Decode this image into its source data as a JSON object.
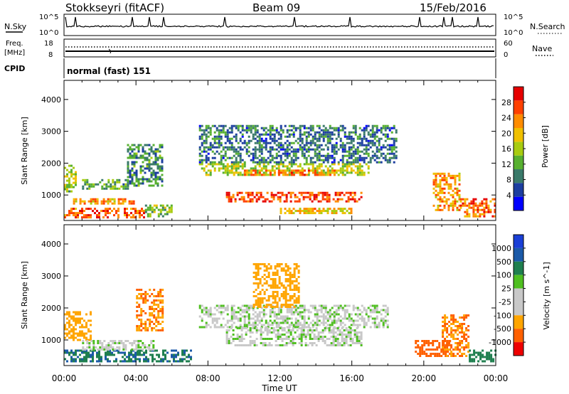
{
  "header": {
    "station": "Stokkseyri (fitACF)",
    "beam": "Beam 09",
    "date": "15/Feb/2016"
  },
  "noise_panel": {
    "left_label": "N.Sky",
    "right_label": "N.Search",
    "left_ticks": [
      "10^5",
      "10^0"
    ],
    "right_ticks": [
      "10^5",
      "10^0"
    ]
  },
  "freq_panel": {
    "left_label_1": "Freq.",
    "left_label_2": "[MHz]",
    "right_label": "Nave",
    "left_ticks": [
      "18",
      "8"
    ],
    "right_ticks": [
      "60",
      "0"
    ]
  },
  "cpid_panel": {
    "label": "CPID",
    "value": "normal (fast) 151"
  },
  "colors": {
    "power_scale": [
      "#0000ff",
      "#1c3ea0",
      "#3a7a6a",
      "#57b030",
      "#a8cc10",
      "#f0c000",
      "#ff8c00",
      "#ff4000",
      "#e60000"
    ],
    "velocity_scale": [
      "#1a3fd6",
      "#1b5aa8",
      "#1f7f4f",
      "#4fbf20",
      "#c8c8c8",
      "#c8c8c8",
      "#ffa500",
      "#ff6000",
      "#ee0000"
    ]
  },
  "chart_data": [
    {
      "type": "heatmap",
      "title": "Power",
      "xlabel": "Time UT",
      "ylabel": "Slant Range [km]",
      "x_ticks": [
        "00:00",
        "04:00",
        "08:00",
        "12:00",
        "16:00",
        "20:00",
        "00:00"
      ],
      "y_ticks": [
        "1000",
        "2000",
        "3000",
        "4000"
      ],
      "ylim": [
        200,
        4600
      ],
      "colorbar": {
        "label": "Power [dB]",
        "ticks": [
          "4",
          "8",
          "12",
          "16",
          "20",
          "24",
          "28"
        ],
        "range": [
          0,
          32
        ]
      },
      "echo_regions": [
        {
          "t_start": 0.0,
          "t_end": 0.6,
          "r_min": 1100,
          "r_max": 1950,
          "value": 15
        },
        {
          "t_start": 0.0,
          "t_end": 4.5,
          "r_min": 300,
          "r_max": 600,
          "value": 26
        },
        {
          "t_start": 0.5,
          "t_end": 4.0,
          "r_min": 700,
          "r_max": 900,
          "value": 22
        },
        {
          "t_start": 1.0,
          "t_end": 3.5,
          "r_min": 1200,
          "r_max": 1500,
          "value": 12
        },
        {
          "t_start": 3.5,
          "t_end": 5.5,
          "r_min": 1300,
          "r_max": 2600,
          "value": 10
        },
        {
          "t_start": 4.5,
          "t_end": 6.0,
          "r_min": 300,
          "r_max": 700,
          "value": 14
        },
        {
          "t_start": 7.5,
          "t_end": 17.0,
          "r_min": 1600,
          "r_max": 2000,
          "value": 16
        },
        {
          "t_start": 7.5,
          "t_end": 18.5,
          "r_min": 2000,
          "r_max": 3200,
          "value": 8
        },
        {
          "t_start": 9.0,
          "t_end": 16.5,
          "r_min": 800,
          "r_max": 1100,
          "value": 27
        },
        {
          "t_start": 10.0,
          "t_end": 15.0,
          "r_min": 1600,
          "r_max": 1800,
          "value": 24
        },
        {
          "t_start": 12.0,
          "t_end": 16.0,
          "r_min": 400,
          "r_max": 600,
          "value": 20
        },
        {
          "t_start": 20.5,
          "t_end": 22.0,
          "r_min": 500,
          "r_max": 1700,
          "value": 22
        },
        {
          "t_start": 22.0,
          "t_end": 24.0,
          "r_min": 300,
          "r_max": 900,
          "value": 25
        }
      ]
    },
    {
      "type": "heatmap",
      "title": "Velocity",
      "xlabel": "Time UT",
      "ylabel": "Slant Range [km]",
      "x_ticks": [
        "00:00",
        "04:00",
        "08:00",
        "12:00",
        "16:00",
        "20:00",
        "00:00"
      ],
      "y_ticks": [
        "1000",
        "2000",
        "3000",
        "4000"
      ],
      "ylim": [
        200,
        4600
      ],
      "colorbar": {
        "label": "Velocity [m s^-1]",
        "ticks": [
          "1000",
          "500",
          "100",
          "25",
          "-25",
          "-100",
          "-500",
          "-1000"
        ]
      },
      "echo_regions": [
        {
          "t_start": 0.0,
          "t_end": 1.5,
          "r_min": 1000,
          "r_max": 1900,
          "value": -200
        },
        {
          "t_start": 0.0,
          "t_end": 7.0,
          "r_min": 300,
          "r_max": 700,
          "value": 300
        },
        {
          "t_start": 1.0,
          "t_end": 5.0,
          "r_min": 700,
          "r_max": 1000,
          "value": 0
        },
        {
          "t_start": 4.0,
          "t_end": 5.5,
          "r_min": 1300,
          "r_max": 2600,
          "value": -300
        },
        {
          "t_start": 7.5,
          "t_end": 18.0,
          "r_min": 1400,
          "r_max": 2100,
          "value": 0
        },
        {
          "t_start": 9.0,
          "t_end": 16.5,
          "r_min": 800,
          "r_max": 1400,
          "value": 0
        },
        {
          "t_start": 10.5,
          "t_end": 13.0,
          "r_min": 2000,
          "r_max": 3400,
          "value": -150
        },
        {
          "t_start": 19.5,
          "t_end": 21.5,
          "r_min": 500,
          "r_max": 1000,
          "value": -400
        },
        {
          "t_start": 21.0,
          "t_end": 22.5,
          "r_min": 500,
          "r_max": 1800,
          "value": -300
        },
        {
          "t_start": 22.5,
          "t_end": 24.0,
          "r_min": 300,
          "r_max": 700,
          "value": 200
        }
      ]
    }
  ]
}
